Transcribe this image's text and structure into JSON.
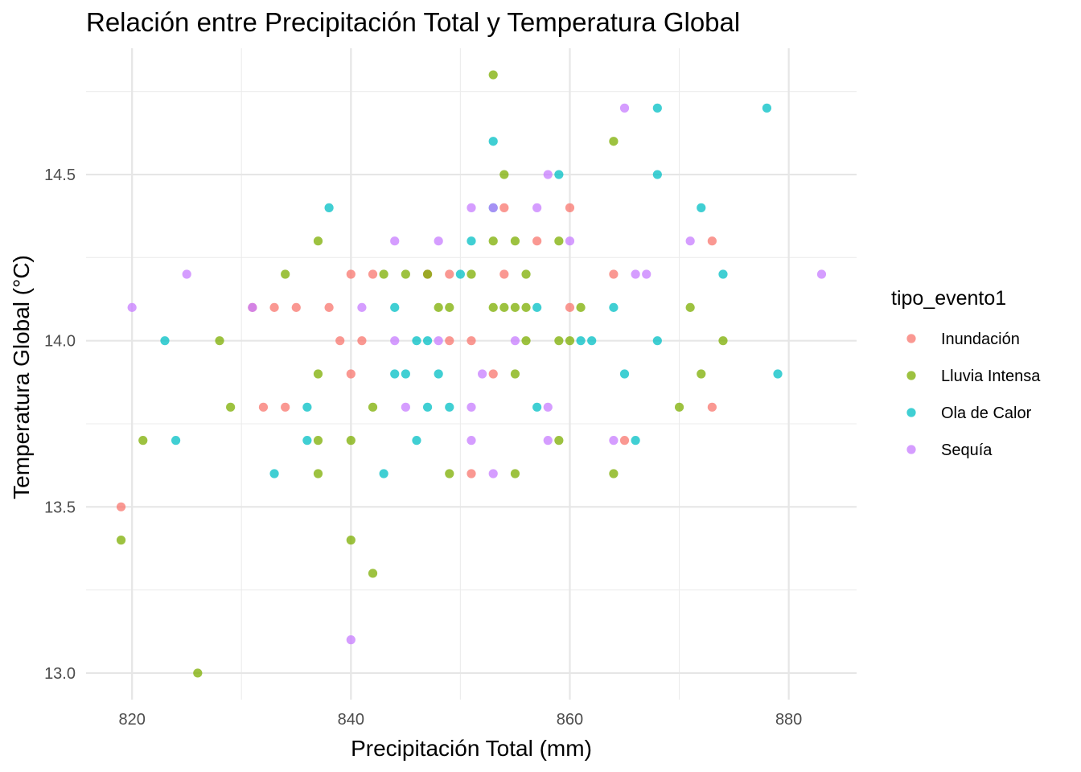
{
  "chart_data": {
    "type": "scatter",
    "title": "Relación entre Precipitación Total y Temperatura Global",
    "xlabel": "Precipitación Total (mm)",
    "ylabel": "Temperatura Global (°C)",
    "xlim": [
      815.8,
      886.2
    ],
    "ylim": [
      12.92,
      14.88
    ],
    "x_ticks": [
      820,
      840,
      860,
      880
    ],
    "x_tick_labels": [
      "820",
      "840",
      "860",
      "880"
    ],
    "y_ticks": [
      13.0,
      13.5,
      14.0,
      14.5
    ],
    "y_tick_labels": [
      "13.0",
      "13.5",
      "14.0",
      "14.5"
    ],
    "grid": true,
    "legend": {
      "title": "tipo_evento1",
      "position": "right"
    },
    "series": [
      {
        "name": "Inundación",
        "color": "#F8766D",
        "points": [
          [
            819,
            13.5
          ],
          [
            831,
            14.1
          ],
          [
            832,
            13.8
          ],
          [
            833,
            14.1
          ],
          [
            834,
            13.8
          ],
          [
            835,
            14.1
          ],
          [
            838,
            14.1
          ],
          [
            839,
            14.0
          ],
          [
            840,
            14.2
          ],
          [
            840,
            13.9
          ],
          [
            841,
            14.0
          ],
          [
            842,
            14.2
          ],
          [
            847,
            14.2
          ],
          [
            849,
            14.2
          ],
          [
            849,
            14.0
          ],
          [
            851,
            14.0
          ],
          [
            851,
            13.6
          ],
          [
            853,
            13.9
          ],
          [
            854,
            14.4
          ],
          [
            854,
            14.2
          ],
          [
            857,
            14.3
          ],
          [
            860,
            14.4
          ],
          [
            860,
            14.1
          ],
          [
            864,
            14.2
          ],
          [
            865,
            13.7
          ],
          [
            873,
            14.3
          ],
          [
            873,
            13.8
          ]
        ]
      },
      {
        "name": "Lluvia Intensa",
        "color": "#7CAE00",
        "points": [
          [
            819,
            13.4
          ],
          [
            821,
            13.7
          ],
          [
            826,
            13.0
          ],
          [
            828,
            14.0
          ],
          [
            829,
            13.8
          ],
          [
            834,
            14.2
          ],
          [
            837,
            14.3
          ],
          [
            837,
            13.9
          ],
          [
            837,
            13.7
          ],
          [
            837,
            13.6
          ],
          [
            840,
            13.7
          ],
          [
            840,
            13.4
          ],
          [
            842,
            13.8
          ],
          [
            842,
            13.3
          ],
          [
            843,
            14.2
          ],
          [
            845,
            14.2
          ],
          [
            847,
            14.2
          ],
          [
            848,
            14.1
          ],
          [
            849,
            14.1
          ],
          [
            849,
            13.6
          ],
          [
            851,
            14.2
          ],
          [
            853,
            14.8
          ],
          [
            853,
            14.3
          ],
          [
            853,
            14.1
          ],
          [
            854,
            14.5
          ],
          [
            854,
            14.1
          ],
          [
            855,
            14.3
          ],
          [
            855,
            14.1
          ],
          [
            855,
            13.9
          ],
          [
            855,
            13.6
          ],
          [
            856,
            14.2
          ],
          [
            856,
            14.1
          ],
          [
            856,
            14.0
          ],
          [
            859,
            14.3
          ],
          [
            859,
            14.0
          ],
          [
            859,
            13.7
          ],
          [
            860,
            14.0
          ],
          [
            861,
            14.1
          ],
          [
            864,
            14.6
          ],
          [
            864,
            13.6
          ],
          [
            870,
            13.8
          ],
          [
            871,
            14.1
          ],
          [
            872,
            13.9
          ],
          [
            874,
            14.0
          ]
        ]
      },
      {
        "name": "Ola de Calor",
        "color": "#00BFC4",
        "points": [
          [
            823,
            14.0
          ],
          [
            824,
            13.7
          ],
          [
            833,
            13.6
          ],
          [
            836,
            13.8
          ],
          [
            836,
            13.7
          ],
          [
            838,
            14.4
          ],
          [
            843,
            13.6
          ],
          [
            844,
            14.1
          ],
          [
            844,
            13.9
          ],
          [
            845,
            13.9
          ],
          [
            846,
            14.0
          ],
          [
            846,
            13.7
          ],
          [
            847,
            14.0
          ],
          [
            847,
            13.8
          ],
          [
            848,
            13.9
          ],
          [
            849,
            13.8
          ],
          [
            850,
            14.2
          ],
          [
            851,
            14.3
          ],
          [
            853,
            14.6
          ],
          [
            853,
            14.4
          ],
          [
            857,
            14.1
          ],
          [
            857,
            13.8
          ],
          [
            859,
            14.5
          ],
          [
            861,
            14.0
          ],
          [
            862,
            14.0
          ],
          [
            864,
            14.1
          ],
          [
            865,
            13.9
          ],
          [
            866,
            13.7
          ],
          [
            868,
            14.7
          ],
          [
            868,
            14.5
          ],
          [
            868,
            14.0
          ],
          [
            872,
            14.4
          ],
          [
            874,
            14.2
          ],
          [
            878,
            14.7
          ],
          [
            879,
            13.9
          ]
        ]
      },
      {
        "name": "Sequía",
        "color": "#C77CFF",
        "points": [
          [
            820,
            14.1
          ],
          [
            825,
            14.2
          ],
          [
            831,
            14.1
          ],
          [
            840,
            13.1
          ],
          [
            841,
            14.1
          ],
          [
            844,
            14.3
          ],
          [
            844,
            14.0
          ],
          [
            845,
            13.8
          ],
          [
            848,
            14.3
          ],
          [
            848,
            14.0
          ],
          [
            851,
            14.4
          ],
          [
            851,
            13.8
          ],
          [
            851,
            13.7
          ],
          [
            852,
            13.9
          ],
          [
            853,
            14.4
          ],
          [
            853,
            13.6
          ],
          [
            855,
            14.0
          ],
          [
            857,
            14.4
          ],
          [
            858,
            14.5
          ],
          [
            858,
            13.8
          ],
          [
            858,
            13.7
          ],
          [
            860,
            14.3
          ],
          [
            864,
            13.7
          ],
          [
            865,
            14.7
          ],
          [
            866,
            14.2
          ],
          [
            867,
            14.2
          ],
          [
            871,
            14.3
          ],
          [
            883,
            14.2
          ]
        ]
      }
    ]
  }
}
